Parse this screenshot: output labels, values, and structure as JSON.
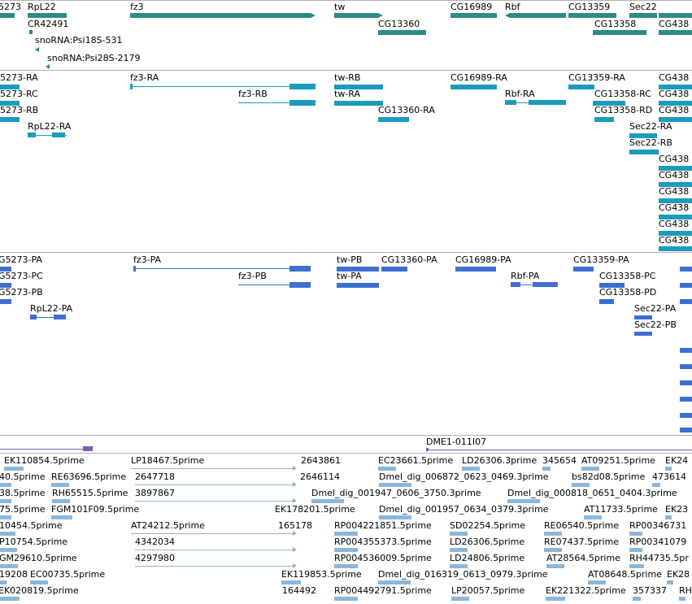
{
  "colors": {
    "gene": "#2e8b86",
    "transcript": "#1a9cbd",
    "protein": "#3b6fd4",
    "est": "#8bb6dc",
    "clone": "#7c5cb8",
    "divider": "#b0b0b0"
  },
  "genes": [
    {
      "id": "gene-5273",
      "label": "5273",
      "icon": "bar"
    },
    {
      "id": "gene-rpl22",
      "label": "RpL22",
      "icon": "bar"
    },
    {
      "id": "gene-fz3",
      "label": "fz3",
      "icon": "arrow-right"
    },
    {
      "id": "gene-tw",
      "label": "tw",
      "icon": "arrow-right"
    },
    {
      "id": "gene-cg16989",
      "label": "CG16989",
      "icon": "bar"
    },
    {
      "id": "gene-rbf",
      "label": "Rbf",
      "icon": "arrow-left"
    },
    {
      "id": "gene-cg13359",
      "label": "CG13359",
      "icon": "bar"
    },
    {
      "id": "gene-sec22",
      "label": "Sec22",
      "icon": "bar"
    },
    {
      "id": "gene-cr42491",
      "label": "CR42491",
      "icon": "bar"
    },
    {
      "id": "gene-cg13360",
      "label": "CG13360",
      "icon": "bar"
    },
    {
      "id": "gene-cg13358",
      "label": "CG13358",
      "icon": "bar"
    },
    {
      "id": "gene-cg438",
      "label": "CG438",
      "icon": "bar"
    },
    {
      "id": "gene-sno531",
      "label": "snoRNA:Psi18S-531",
      "icon": "arrow-left"
    },
    {
      "id": "gene-sno2179",
      "label": "snoRNA:Psi28S-2179",
      "icon": "arrow-left"
    }
  ],
  "transcripts": [
    {
      "label": "5273-RA"
    },
    {
      "label": "5273-RC"
    },
    {
      "label": "5273-RB"
    },
    {
      "label": "RpL22-RA"
    },
    {
      "label": "fz3-RA"
    },
    {
      "label": "fz3-RB"
    },
    {
      "label": "tw-RB"
    },
    {
      "label": "tw-RA"
    },
    {
      "label": "CG13360-RA"
    },
    {
      "label": "CG16989-RA"
    },
    {
      "label": "Rbf-RA"
    },
    {
      "label": "CG13359-RA"
    },
    {
      "label": "CG13358-RC"
    },
    {
      "label": "CG13358-RD"
    },
    {
      "label": "Sec22-RA"
    },
    {
      "label": "Sec22-RB"
    },
    {
      "label": "CG438"
    },
    {
      "label": "CG438"
    },
    {
      "label": "CG438"
    },
    {
      "label": "CG438"
    },
    {
      "label": "CG438"
    },
    {
      "label": "CG438"
    },
    {
      "label": "CG438"
    },
    {
      "label": "CG438"
    },
    {
      "label": "CG438"
    },
    {
      "label": "CG438"
    }
  ],
  "proteins": [
    {
      "label": "G5273-PA"
    },
    {
      "label": "G5273-PC"
    },
    {
      "label": "G5273-PB"
    },
    {
      "label": "RpL22-PA"
    },
    {
      "label": "fz3-PA"
    },
    {
      "label": "fz3-PB"
    },
    {
      "label": "tw-PB"
    },
    {
      "label": "tw-PA"
    },
    {
      "label": "CG13360-PA"
    },
    {
      "label": "CG16989-PA"
    },
    {
      "label": "Rbf-PA"
    },
    {
      "label": "CG13359-PA"
    },
    {
      "label": "CG13358-PC"
    },
    {
      "label": "CG13358-PD"
    },
    {
      "label": "Sec22-PA"
    },
    {
      "label": "Sec22-PB"
    }
  ],
  "clones": [
    {
      "label": "DME1-011I07"
    }
  ],
  "ests": [
    "EK110854.5prime",
    "LP18467.5prime",
    "2643861",
    "EC23661.5prime",
    "LD26306.3prime",
    "345654",
    "AT09251.5prime",
    "EK24",
    "40.5prime",
    "RE63696.5prime",
    "2647718",
    "2646114",
    "Dmel_dig_006872_0623_0469.3prime",
    "bs82d08.5prime",
    "473614",
    "38.5prime",
    "RH65515.5prime",
    "3897867",
    "Dmel_dig_001947_0606_3750.3prime",
    "Dmel_dig_000818_0651_0404.3prime",
    "75.5prime",
    "FGM101F09.5prime",
    "EK178201.5prime",
    "Dmel_dig_001957_0634_0379.3prime",
    "AT11733.5prime",
    "EK23",
    "10454.5prime",
    "AT24212.5prime",
    "165178",
    "RP004221851.5prime",
    "SD02254.5prime",
    "RE06540.5prime",
    "RP00346731",
    "P10754.5prime",
    "4342034",
    "RP004355373.5prime",
    "LD26306.5prime",
    "RE07437.5prime",
    "RP00341079",
    "GM29610.5prime",
    "4297980",
    "RP004536009.5prime",
    "LD24806.5prime",
    "AT28564.5prime",
    "RH44735.5pr",
    "19208",
    "EC00735.5prime",
    "EK119853.5prime",
    "Dmel_dig_016319_0613_0979.3prime",
    "AT08648.5prime",
    "EK28",
    "EK020819.5prime",
    "164492",
    "RP004492791.5prime",
    "LP20057.5prime",
    "EK221322.5prime",
    "357337",
    "RH"
  ]
}
